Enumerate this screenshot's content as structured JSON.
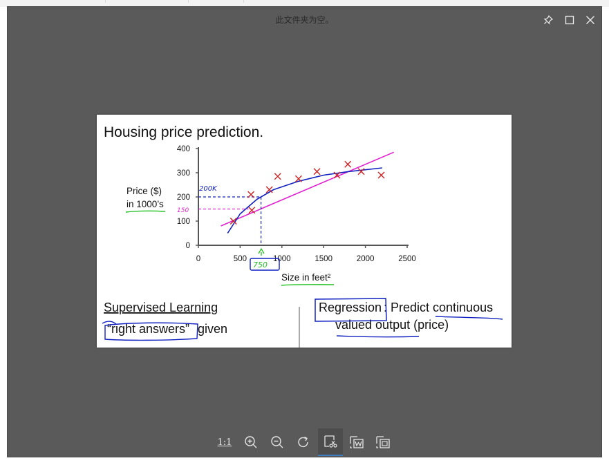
{
  "window": {
    "title": "此文件夹为空。",
    "controls": [
      "pin-icon",
      "maximize-icon",
      "close-icon"
    ]
  },
  "slide": {
    "title": "Housing price prediction.",
    "y_label_line1": "Price ($)",
    "y_label_line2": "in 1000’s",
    "x_label": "Size in feet²",
    "left_text_line1": "Supervised Learning",
    "left_text_line2_a": "“right answers”",
    "left_text_line2_b": " given",
    "right_text_word": "Regression",
    "right_text_rest": ": Predict continuous",
    "right_text_line2": "valued output (price)",
    "annotation_200k": "200K",
    "annotation_150": "150",
    "annotation_750": "750"
  },
  "chart_data": {
    "type": "scatter",
    "title": "",
    "xlabel": "Size in feet²",
    "ylabel": "Price ($) in 1000’s",
    "xlim": [
      0,
      2500
    ],
    "ylim": [
      0,
      400
    ],
    "x_ticks": [
      0,
      500,
      1000,
      1500,
      2000,
      2500
    ],
    "y_ticks": [
      0,
      100,
      200,
      300,
      400
    ],
    "series": [
      {
        "marker": "x",
        "color": "#cc2222",
        "points": [
          [
            420,
            100
          ],
          [
            630,
            210
          ],
          [
            640,
            145
          ],
          [
            850,
            230
          ],
          [
            950,
            285
          ],
          [
            1200,
            275
          ],
          [
            1420,
            305
          ],
          [
            1660,
            290
          ],
          [
            1790,
            335
          ],
          [
            1950,
            305
          ],
          [
            2190,
            290
          ]
        ]
      }
    ],
    "fits": [
      {
        "kind": "straight",
        "color": "#e020d0",
        "points": [
          [
            270,
            80
          ],
          [
            2340,
            385
          ]
        ]
      },
      {
        "kind": "curve",
        "color": "#1020c0",
        "points": [
          [
            350,
            50
          ],
          [
            500,
            130
          ],
          [
            700,
            190
          ],
          [
            900,
            230
          ],
          [
            1200,
            265
          ],
          [
            1500,
            290
          ],
          [
            1800,
            305
          ],
          [
            2200,
            320
          ]
        ]
      }
    ],
    "reference_lines": [
      {
        "color": "#1020c0",
        "x": 750,
        "y": 200
      },
      {
        "color": "#e020d0",
        "y": 150
      }
    ]
  },
  "toolbar": {
    "actual_size_label": "1:1",
    "tools": [
      "actual-size-button",
      "zoom-in-button",
      "zoom-out-button",
      "rotate-button",
      "crop-button",
      "ocr-word-button",
      "export-button"
    ]
  }
}
